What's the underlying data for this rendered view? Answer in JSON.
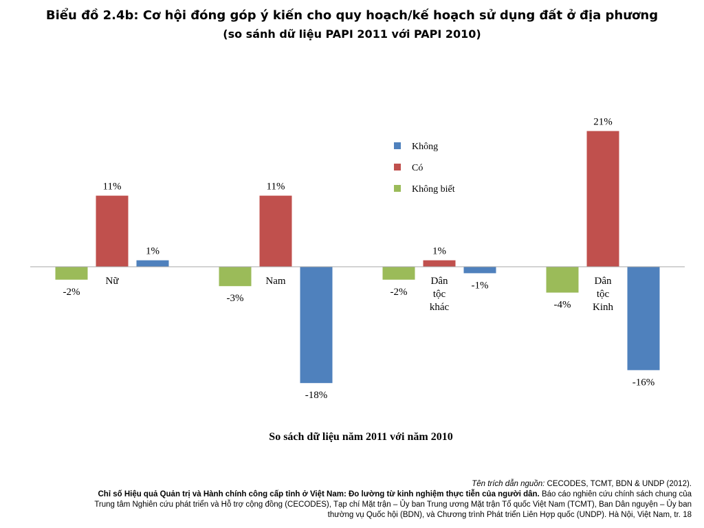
{
  "title": "Biểu đồ 2.4b: Cơ hội đóng góp ý kiến cho quy hoạch/kế hoạch sử dụng đất ở địa phương",
  "subtitle": "(so sánh dữ liệu PAPI 2011 với PAPI 2010)",
  "chart_data": {
    "type": "bar",
    "categories": [
      [
        "Nữ"
      ],
      [
        "Nam"
      ],
      [
        "Dân",
        "tộc",
        "khác"
      ],
      [
        "Dân",
        "tộc",
        "Kinh"
      ]
    ],
    "series": [
      {
        "name": "Không biết",
        "color": "#9bbb59",
        "values": [
          -2,
          -3,
          -2,
          -4
        ],
        "labels": [
          "-2%",
          "-3%",
          "-2%",
          "-4%"
        ]
      },
      {
        "name": "Có",
        "color": "#c0504d",
        "values": [
          11,
          11,
          1,
          21
        ],
        "labels": [
          "11%",
          "11%",
          "1%",
          "21%"
        ]
      },
      {
        "name": "Không",
        "color": "#4f81bd",
        "values": [
          1,
          -18,
          -1,
          -16
        ],
        "labels": [
          "1%",
          "-18%",
          "-1%",
          "-16%"
        ]
      }
    ],
    "legend": {
      "position": "top-center",
      "order": [
        "Không",
        "Có",
        "Không biết"
      ]
    },
    "xlabel": "So sách dữ liệu năm 2011 với năm 2010",
    "ylim": [
      -25,
      25
    ],
    "grid": false
  },
  "source": {
    "label": "Tên trích dẫn nguồn:",
    "authors": "CECODES, TCMT, BDN & UNDP (2012).",
    "publication": "Chỉ số Hiệu quả Quản trị và Hành chính công cấp tỉnh ở Việt Nam: Đo lường từ kinh nghiệm thực tiễn của người dân.",
    "line3": "Báo cáo nghiên cứu chính sách chung của",
    "line4": "Trung tâm Nghiên cứu phát triển và Hỗ trợ cộng đồng (CECODES), Tạp chí Mặt trận – Ủy ban Trung ương Mặt trận Tổ quốc Việt Nam (TCMT), Ban Dân nguyện – Ủy ban",
    "line5": "thường vụ Quốc hội (BDN), và Chương trình Phát triển Liên Hợp quốc (UNDP). Hà Nội, Việt Nam, tr. 18"
  }
}
